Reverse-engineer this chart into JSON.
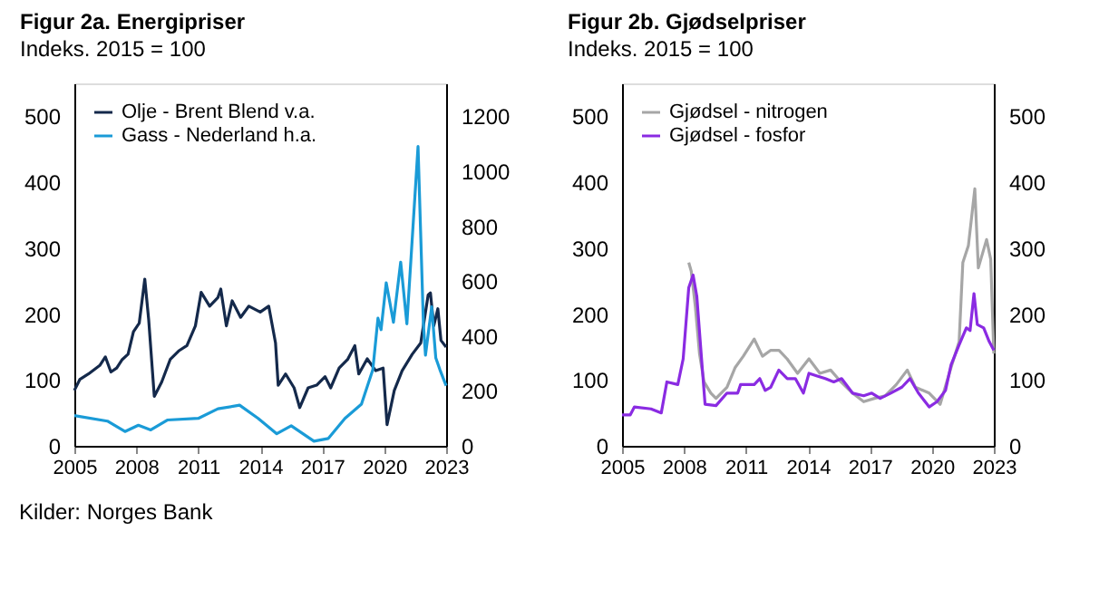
{
  "chart_data": [
    {
      "type": "line",
      "title": "Figur 2a. Energipriser",
      "subtitle": "Indeks. 2015 = 100",
      "xlim": [
        2005,
        2023
      ],
      "xticks": [
        2005,
        2008,
        2011,
        2014,
        2017,
        2020,
        2023
      ],
      "ylim": [
        0,
        550
      ],
      "yticks": [
        0,
        100,
        200,
        300,
        400,
        500
      ],
      "y2lim": [
        0,
        1320
      ],
      "y2ticks": [
        0,
        200,
        400,
        600,
        800,
        1000,
        1200
      ],
      "grid": false,
      "legend": "top left",
      "series": [
        {
          "name": "Olje - Brent Blend v.a.",
          "color": "#14294b",
          "x": [
            2005.0,
            2005.27,
            2005.68,
            2006.23,
            2006.5,
            2006.77,
            2007.05,
            2007.32,
            2007.6,
            2007.86,
            2008.14,
            2008.41,
            2008.6,
            2008.87,
            2009.23,
            2009.64,
            2010.05,
            2010.45,
            2010.86,
            2011.14,
            2011.55,
            2011.95,
            2012.09,
            2012.36,
            2012.64,
            2013.05,
            2013.45,
            2014.0,
            2014.41,
            2014.74,
            2014.87,
            2015.23,
            2015.64,
            2015.91,
            2016.32,
            2016.73,
            2017.14,
            2017.41,
            2017.82,
            2018.23,
            2018.58,
            2018.77,
            2019.18,
            2019.59,
            2019.95,
            2020.14,
            2020.49,
            2020.87,
            2021.36,
            2021.77,
            2022.13,
            2022.24,
            2022.4,
            2022.6,
            2022.75,
            2023.0
          ],
          "values": [
            84,
            101,
            109,
            122,
            135,
            112,
            118,
            131,
            139,
            173,
            186,
            253,
            191,
            75,
            97,
            131,
            144,
            152,
            182,
            233,
            212,
            225,
            238,
            182,
            220,
            195,
            212,
            203,
            212,
            156,
            92,
            109,
            88,
            58,
            88,
            92,
            105,
            88,
            118,
            131,
            152,
            109,
            132,
            114,
            118,
            32,
            84,
            114,
            139,
            156,
            229,
            232,
            182,
            208,
            160,
            150
          ]
        },
        {
          "name": "Gass - Nederland h.a.",
          "color": "#1a9bd7",
          "axis": "y2",
          "x": [
            2005.0,
            2006.6,
            2007.45,
            2008.1,
            2008.7,
            2009.5,
            2011.0,
            2011.95,
            2013.0,
            2013.9,
            2014.8,
            2015.5,
            2016.6,
            2017.3,
            2018.1,
            2018.9,
            2019.45,
            2019.7,
            2019.85,
            2020.1,
            2020.45,
            2020.8,
            2021.1,
            2021.64,
            2021.9,
            2022.0,
            2022.3,
            2022.5,
            2022.7,
            2023.0
          ],
          "values": [
            110,
            90,
            52,
            75,
            58,
            94,
            100,
            135,
            148,
            100,
            44,
            73,
            17,
            27,
            100,
            152,
            277,
            465,
            423,
            594,
            450,
            669,
            444,
            1090,
            444,
            330,
            506,
            320,
            277,
            219
          ]
        }
      ]
    },
    {
      "type": "line",
      "title": "Figur 2b. Gjødselpriser",
      "subtitle": "Indeks. 2015 = 100",
      "xlim": [
        2005,
        2023
      ],
      "xticks": [
        2005,
        2008,
        2011,
        2014,
        2017,
        2020,
        2023
      ],
      "ylim": [
        0,
        550
      ],
      "yticks": [
        0,
        100,
        200,
        300,
        400,
        500
      ],
      "y2lim": [
        0,
        550
      ],
      "y2ticks": [
        0,
        100,
        200,
        300,
        400,
        500
      ],
      "grid": false,
      "legend": "top left",
      "annotations": [
        "Kilder: Norges Bank"
      ],
      "series": [
        {
          "name": "Gjødsel - nitrogen",
          "color": "#a6a6a6",
          "x": [
            2008.23,
            2008.35,
            2008.55,
            2008.75,
            2008.97,
            2009.3,
            2009.55,
            2010.08,
            2010.48,
            2010.87,
            2011.4,
            2011.8,
            2012.2,
            2012.6,
            2012.99,
            2013.5,
            2014.05,
            2014.58,
            2015.1,
            2015.6,
            2016.16,
            2016.7,
            2017.22,
            2017.75,
            2018.28,
            2018.81,
            2019.2,
            2019.87,
            2020.4,
            2020.93,
            2021.32,
            2021.5,
            2021.77,
            2022.08,
            2022.25,
            2022.65,
            2022.85,
            2023.0
          ],
          "values": [
            278,
            265,
            211,
            140,
            97,
            80,
            72,
            89,
            119,
            136,
            162,
            136,
            145,
            145,
            132,
            110,
            132,
            110,
            115,
            97,
            80,
            67,
            72,
            76,
            93,
            115,
            89,
            80,
            63,
            119,
            158,
            278,
            304,
            390,
            270,
            313,
            283,
            140
          ]
        },
        {
          "name": "Gjødsel - fosfor",
          "color": "#8a2be2",
          "x": [
            2005.0,
            2005.4,
            2005.6,
            2006.4,
            2006.9,
            2007.17,
            2007.7,
            2007.96,
            2008.23,
            2008.44,
            2008.62,
            2008.85,
            2009.02,
            2009.55,
            2010.08,
            2010.6,
            2010.74,
            2011.4,
            2011.67,
            2011.93,
            2012.2,
            2012.59,
            2013.0,
            2013.39,
            2013.78,
            2014.05,
            2014.45,
            2014.84,
            2015.25,
            2015.63,
            2016.16,
            2016.7,
            2017.09,
            2017.5,
            2018.01,
            2018.55,
            2018.94,
            2019.35,
            2019.87,
            2020.25,
            2020.66,
            2020.93,
            2021.32,
            2021.67,
            2021.85,
            2022.04,
            2022.2,
            2022.51,
            2022.78,
            2023.0
          ],
          "values": [
            47,
            47,
            59,
            56,
            50,
            97,
            93,
            132,
            240,
            259,
            227,
            132,
            63,
            61,
            80,
            80,
            93,
            93,
            102,
            84,
            89,
            115,
            102,
            102,
            80,
            110,
            106,
            102,
            97,
            102,
            80,
            76,
            80,
            72,
            80,
            89,
            102,
            80,
            59,
            67,
            84,
            123,
            153,
            179,
            175,
            231,
            184,
            179,
            158,
            145
          ]
        }
      ]
    }
  ]
}
